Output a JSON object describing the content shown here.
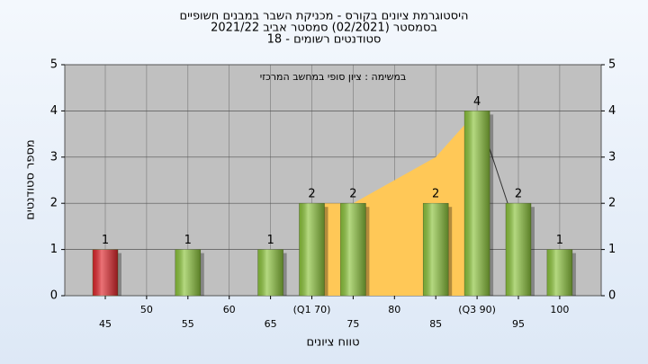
{
  "chart_data": {
    "type": "bar",
    "title": [
      "היסטוגרמת ציונים בקורס - מכניקת השבר במבנים חשופיים",
      "בסמסטר  (02/2021)  סמסטר אביב 2021/22",
      "סטודנטים רשומים - 18"
    ],
    "annotation": "במשימה : ציון סופי במחשב המרכזי",
    "x_label": "טווח ציונים",
    "y_label": "מספר סטודנטים",
    "categories": [
      "45",
      "50",
      "55",
      "60",
      "65",
      "(Q1 70)",
      "75",
      "80",
      "85",
      "(Q3 90)",
      "95",
      "100"
    ],
    "values": [
      1,
      0,
      1,
      0,
      1,
      2,
      2,
      0,
      2,
      4,
      2,
      1
    ],
    "bar_colors": [
      "#e0262c",
      "#8cc43c",
      "#8cc43c",
      "#8cc43c",
      "#8cc43c",
      "#8cc43c",
      "#8cc43c",
      "#8cc43c",
      "#8cc43c",
      "#8cc43c",
      "#8cc43c",
      "#8cc43c"
    ],
    "area": {
      "color": "#ffc857",
      "values": [
        null,
        null,
        null,
        null,
        null,
        2,
        2,
        2.5,
        3,
        4,
        null,
        null
      ]
    },
    "trend": {
      "color": "#333333",
      "values": [
        null,
        null,
        null,
        null,
        null,
        null,
        null,
        null,
        null,
        4,
        1.3,
        null
      ]
    },
    "ylim": [
      0,
      5
    ],
    "yticks": [
      0,
      1,
      2,
      3,
      4,
      5
    ],
    "grid": true
  }
}
